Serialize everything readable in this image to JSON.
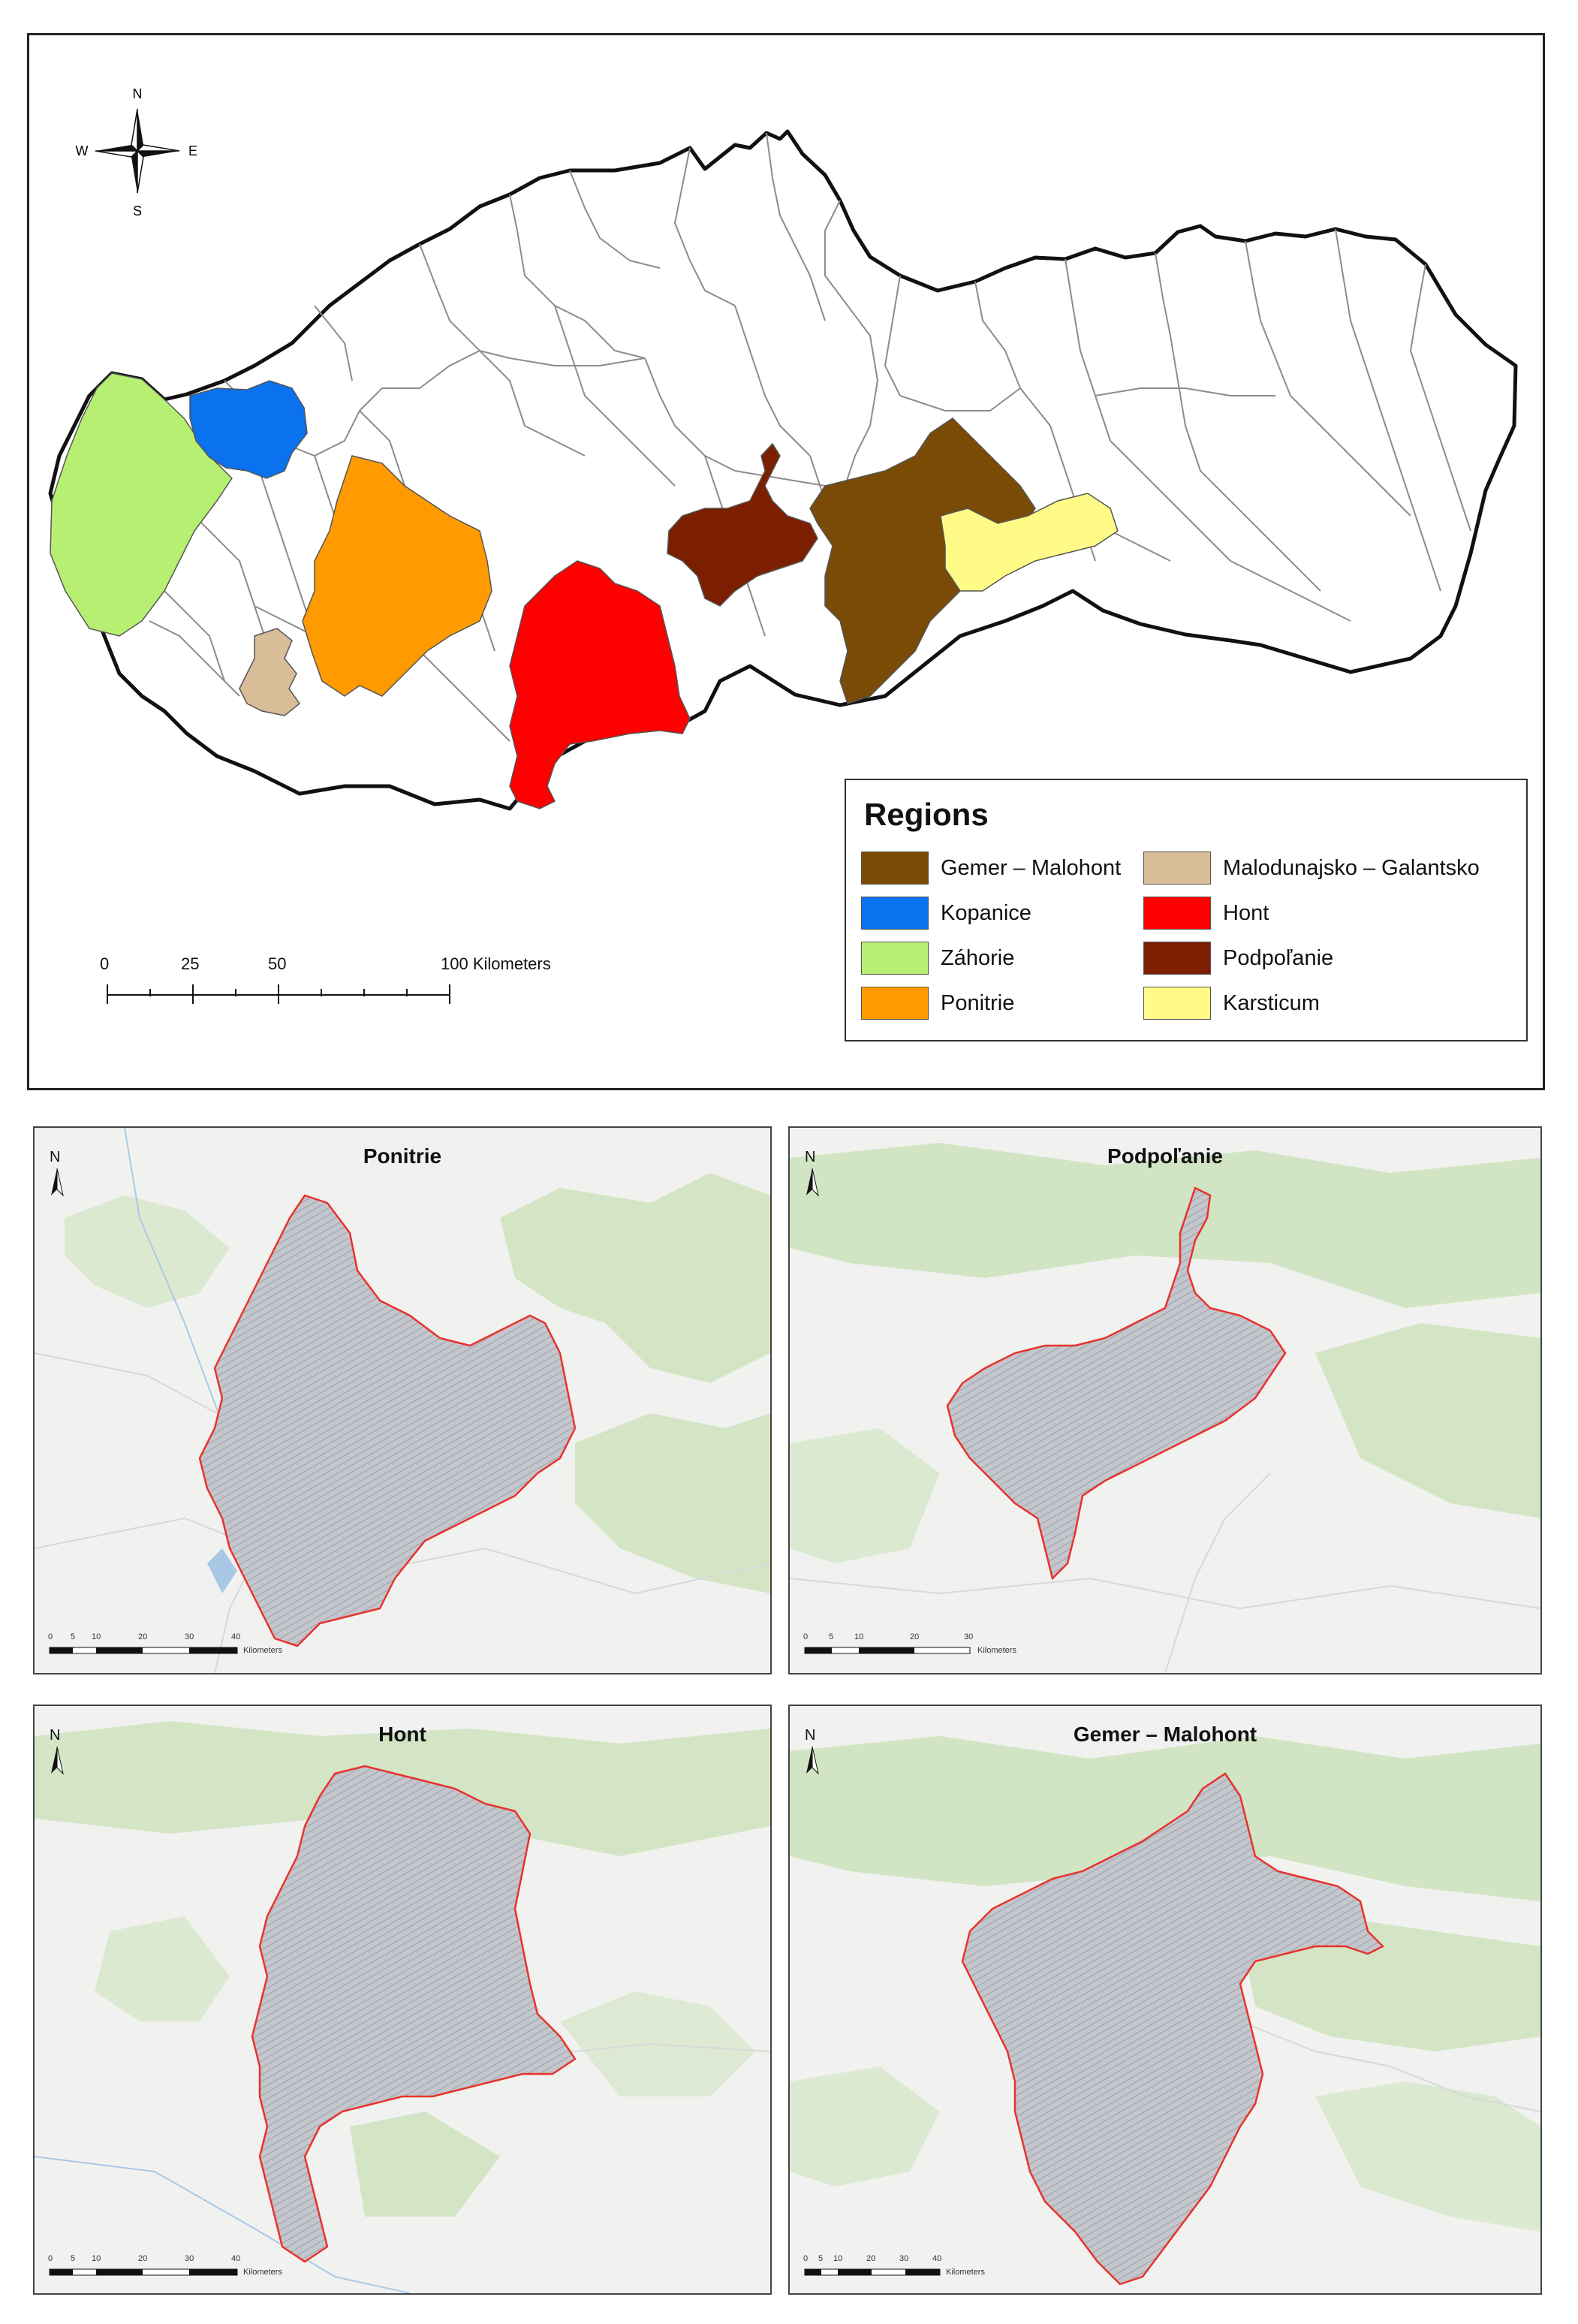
{
  "overview_map": {
    "compass": {
      "n": "N",
      "s": "S",
      "e": "E",
      "w": "W"
    },
    "legend": {
      "title": "Regions",
      "items": [
        {
          "label": "Gemer – Malohont",
          "color": "#7a4b06"
        },
        {
          "label": "Malodunajsko – Galantsko",
          "color": "#d8bd98"
        },
        {
          "label": "Kopanice",
          "color": "#0a72ee"
        },
        {
          "label": "Hont",
          "color": "#ff0000"
        },
        {
          "label": "Záhorie",
          "color": "#b7ef72"
        },
        {
          "label": "Podpoľanie",
          "color": "#7b1f00"
        },
        {
          "label": "Ponitrie",
          "color": "#ff9a00"
        },
        {
          "label": "Karsticum",
          "color": "#fffb86"
        }
      ]
    },
    "scale_bar": {
      "ticks": [
        "0",
        "25",
        "50",
        "100 Kilometers"
      ]
    }
  },
  "panels": [
    {
      "title": "Ponitrie",
      "north": "N",
      "scale_ticks": [
        "0",
        "5",
        "10",
        "20",
        "30",
        "40"
      ],
      "scale_unit": "Kilometers"
    },
    {
      "title": "Podpoľanie",
      "north": "N",
      "scale_ticks": [
        "0",
        "5",
        "10",
        "20",
        "30"
      ],
      "scale_unit": "Kilometers"
    },
    {
      "title": "Hont",
      "north": "N",
      "scale_ticks": [
        "0",
        "5",
        "10",
        "20",
        "30",
        "40"
      ],
      "scale_unit": "Kilometers"
    },
    {
      "title": "Gemer – Malohont",
      "north": "N",
      "scale_ticks": [
        "0",
        "5",
        "10",
        "20",
        "30",
        "40"
      ],
      "scale_unit": "Kilometers"
    }
  ],
  "colors": {
    "outline": "#111111",
    "district_line": "#8c8c8c",
    "region_boundary": "#e8322c",
    "hatch_fill": "#c3c6cc",
    "terrain_base": "#f1f2ef",
    "terrain_green": "#cfe3c0"
  }
}
